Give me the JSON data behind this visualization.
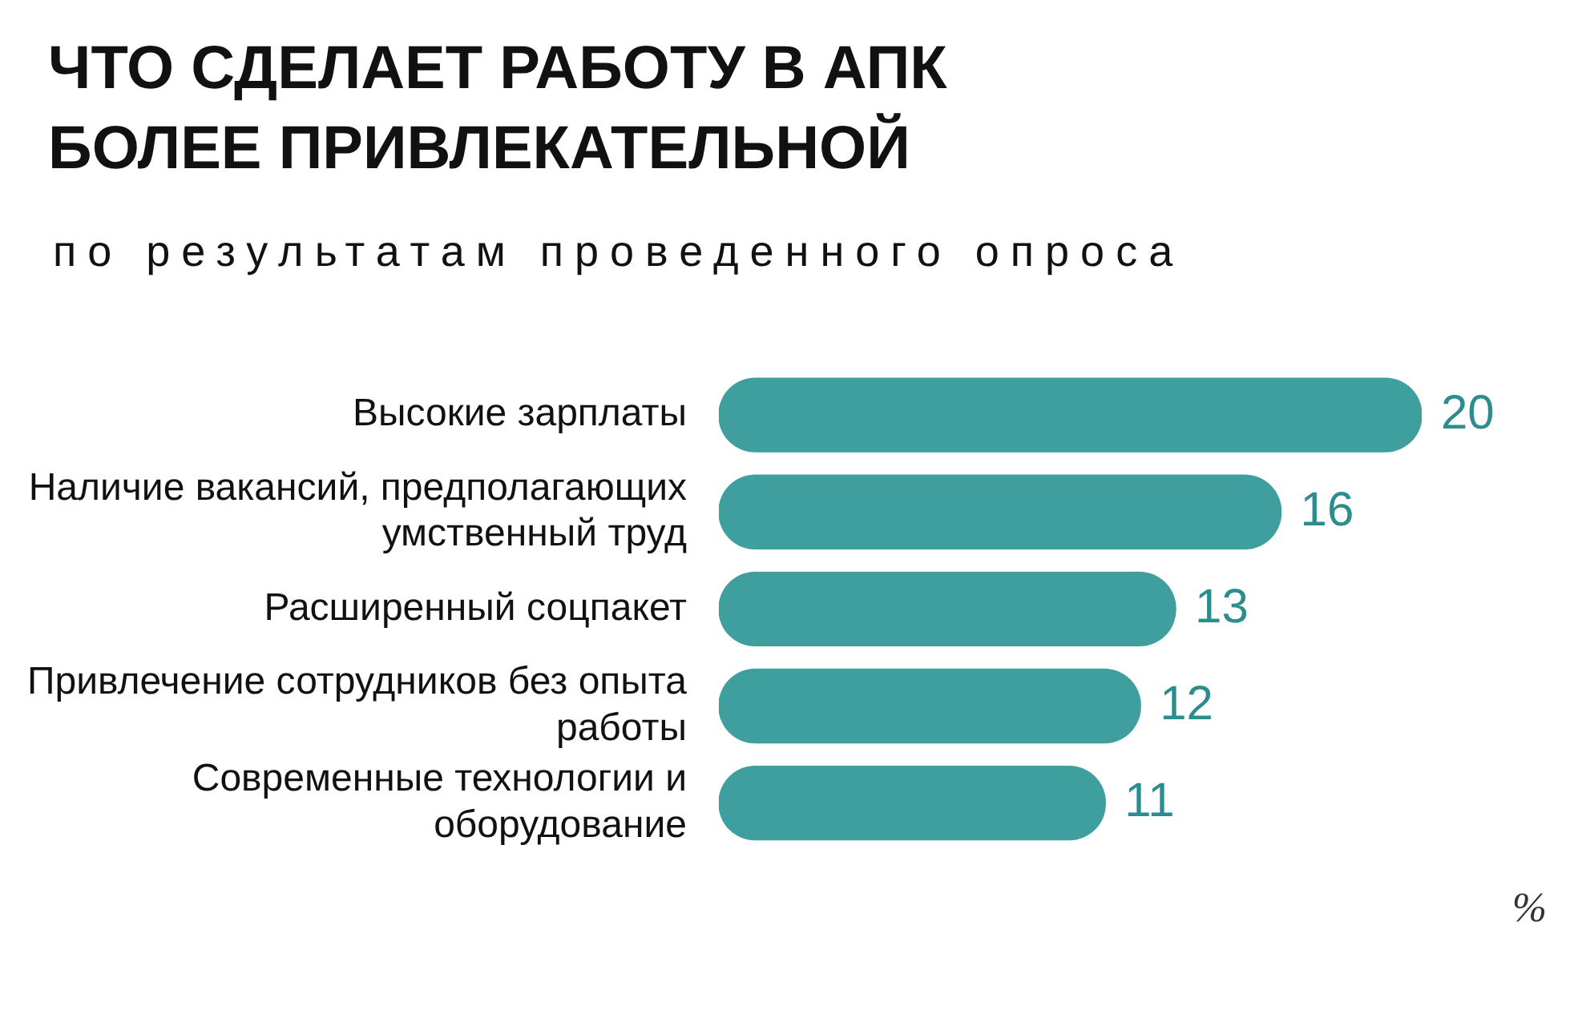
{
  "chart_data": {
    "type": "bar",
    "orientation": "horizontal",
    "title": "ЧТО СДЕЛАЕТ РАБОТУ В АПК БОЛЕЕ ПРИВЛЕКАТЕЛЬНОЙ",
    "subtitle": "по результатам проведенного опроса",
    "categories": [
      "Высокие зарплаты",
      "Наличие вакансий, предполагающих умственный труд",
      "Расширенный соцпакет",
      "Привлечение сотрудников без опыта работы",
      "Современные технологии и оборудование"
    ],
    "values": [
      20,
      16,
      13,
      12,
      11
    ],
    "color": "#3f9e9e",
    "data_labels": true,
    "tick_labels": "y",
    "legend": false,
    "annotations": [
      "%"
    ]
  }
}
